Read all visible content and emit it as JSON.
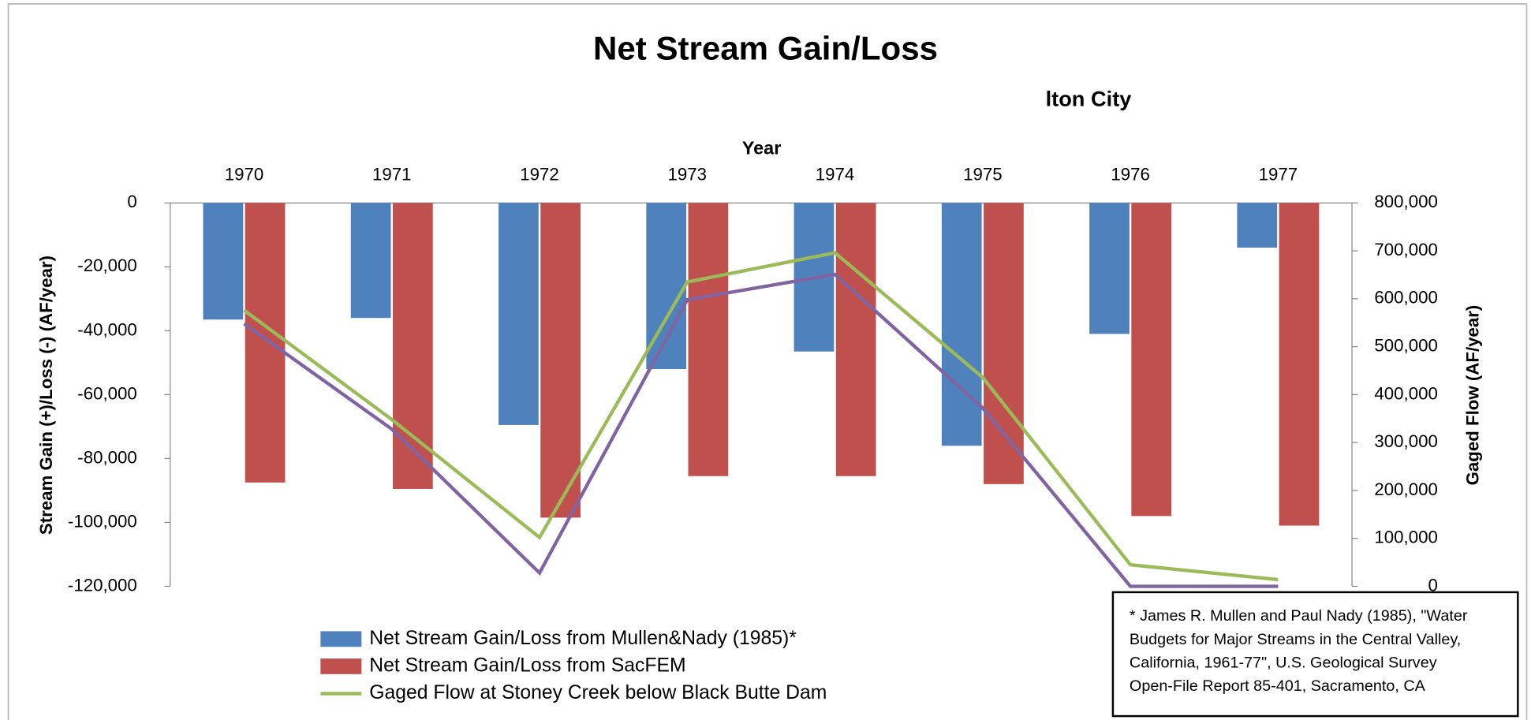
{
  "chart_data": {
    "type": "bar",
    "title": "Net Stream Gain/Loss",
    "annotation": "lton City",
    "xlabel": "Year",
    "ylabel": "Stream Gain (+)/Loss (-)  (AF/year)",
    "y2label": "Gaged Flow (AF/year)",
    "categories": [
      "1970",
      "1971",
      "1972",
      "1973",
      "1974",
      "1975",
      "1976",
      "1977"
    ],
    "series": [
      {
        "name": "Net Stream Gain/Loss from Mullen&Nady (1985)*",
        "type": "bar",
        "color": "#4f81bd",
        "values": [
          -36500,
          -36000,
          -69500,
          -52000,
          -46500,
          -76000,
          -41000,
          -14000
        ]
      },
      {
        "name": "Net Stream Gain/Loss from SacFEM",
        "type": "bar",
        "color": "#c0504d",
        "values": [
          -87500,
          -89500,
          -98500,
          -85500,
          -85500,
          -88000,
          -98000,
          -101000
        ]
      },
      {
        "name": "Gaged Flow at Stoney Creek below Black Butte Dam",
        "type": "line",
        "axis": "y2",
        "color": "#9bbb59",
        "values": [
          576000,
          348000,
          102000,
          635000,
          696000,
          436000,
          45000,
          14000
        ]
      },
      {
        "type": "line",
        "axis": "y2",
        "color": "#8064a2",
        "values": [
          548000,
          328000,
          28000,
          598000,
          651000,
          372000,
          0,
          0
        ]
      }
    ],
    "ylim": [
      -120000,
      0
    ],
    "yticks": [
      0,
      {
        "value": -20000,
        "label": "-20,000"
      },
      {
        "value": -40000,
        "label": "-40,000"
      },
      {
        "value": -60000,
        "label": "-60,000"
      },
      {
        "value": -80000,
        "label": "-80,000"
      },
      {
        "value": -100000,
        "label": "-100,000"
      },
      {
        "value": -120000,
        "label": "-120,000"
      }
    ],
    "y2lim": [
      0,
      800000
    ],
    "y2ticks": [
      0,
      {
        "value": 100000,
        "label": "100,000"
      },
      {
        "value": 200000,
        "label": "200,000"
      },
      {
        "value": 300000,
        "label": "300,000"
      },
      {
        "value": 400000,
        "label": "400,000"
      },
      {
        "value": 500000,
        "label": "500,000"
      },
      {
        "value": 600000,
        "label": "600,000"
      },
      {
        "value": 700000,
        "label": "700,000"
      },
      {
        "value": 800000,
        "label": "800,000"
      }
    ],
    "grid": false,
    "note": [
      "*  James R. Mullen and Paul Nady (1985), \"Water",
      "Budgets for Major Streams in the Central Valley,",
      "California, 1961-77\", U.S. Geological Survey",
      "Open-File Report 85-401, Sacramento, CA"
    ]
  }
}
